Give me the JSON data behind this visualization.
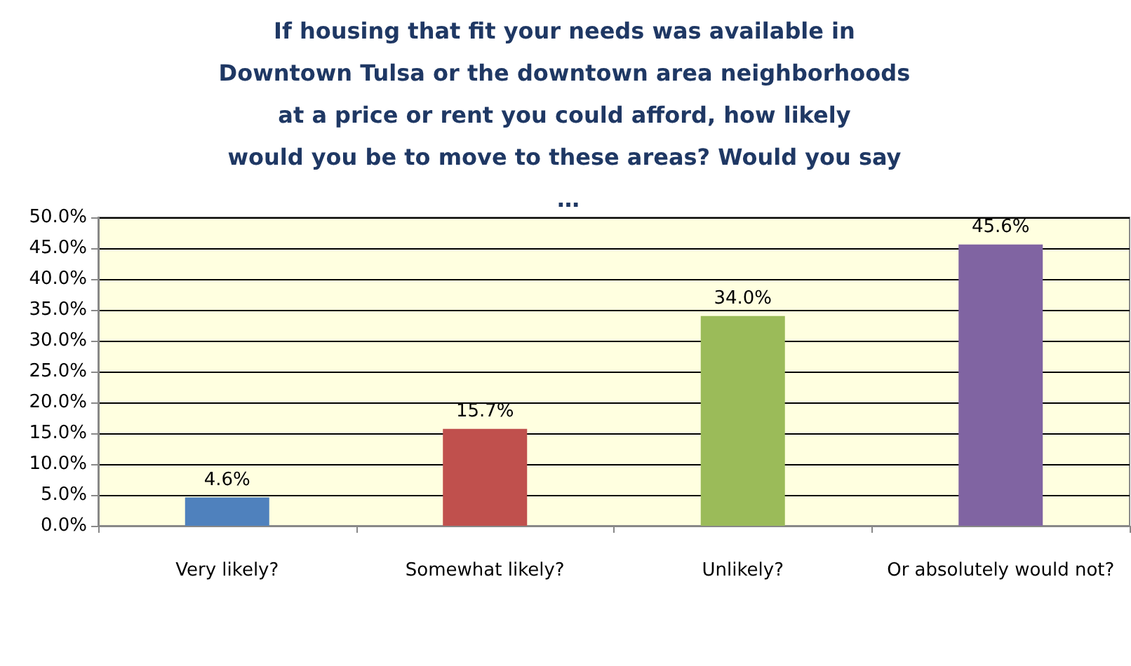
{
  "chart_data": {
    "type": "bar",
    "title": "If housing that fit your needs was available in Downtown Tulsa or the downtown area neighborhoods at a price or rent you could afford, how likely would you be to move to these areas? Would you say …",
    "categories": [
      "Very likely?",
      "Somewhat likely?",
      "Unlikely?",
      "Or absolutely would not?"
    ],
    "values": [
      4.6,
      15.7,
      34.0,
      45.6
    ],
    "colors": [
      "#4f81bd",
      "#c0504d",
      "#9bbb59",
      "#8064a2"
    ],
    "value_labels": [
      "4.6%",
      "15.7%",
      "34.0%",
      "45.6%"
    ],
    "ylim": [
      0,
      50
    ],
    "yticks": [
      {
        "value": 0,
        "label": "0.0%"
      },
      {
        "value": 5,
        "label": "5.0%"
      },
      {
        "value": 10,
        "label": "10.0%"
      },
      {
        "value": 15,
        "label": "15.0%"
      },
      {
        "value": 20,
        "label": "20.0%"
      },
      {
        "value": 25,
        "label": "25.0%"
      },
      {
        "value": 30,
        "label": "30.0%"
      },
      {
        "value": 35,
        "label": "35.0%"
      },
      {
        "value": 40,
        "label": "40.0%"
      },
      {
        "value": 45,
        "label": "45.0%"
      },
      {
        "value": 50,
        "label": "50.0%"
      }
    ],
    "grid": "y"
  }
}
